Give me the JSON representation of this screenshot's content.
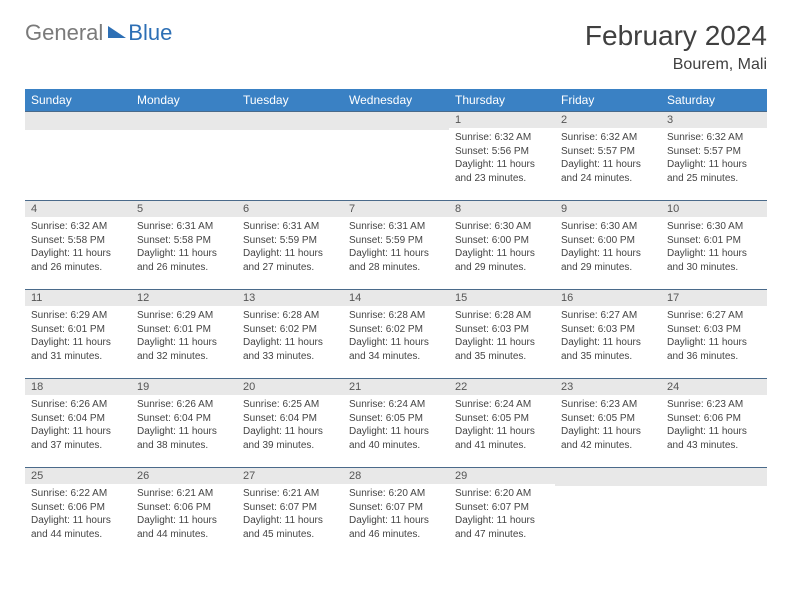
{
  "logo": {
    "general": "General",
    "blue": "Blue"
  },
  "title": "February 2024",
  "location": "Bourem, Mali",
  "weekdays": [
    "Sunday",
    "Monday",
    "Tuesday",
    "Wednesday",
    "Thursday",
    "Friday",
    "Saturday"
  ],
  "colors": {
    "header_bg": "#3a81c4",
    "header_text": "#ffffff",
    "daynum_bg": "#e8e8e8",
    "border": "#4a6a8a",
    "logo_gray": "#7a7a7a",
    "logo_blue": "#2d6fb5"
  },
  "weeks": [
    [
      {
        "num": "",
        "sunrise": "",
        "sunset": "",
        "daylight": ""
      },
      {
        "num": "",
        "sunrise": "",
        "sunset": "",
        "daylight": ""
      },
      {
        "num": "",
        "sunrise": "",
        "sunset": "",
        "daylight": ""
      },
      {
        "num": "",
        "sunrise": "",
        "sunset": "",
        "daylight": ""
      },
      {
        "num": "1",
        "sunrise": "Sunrise: 6:32 AM",
        "sunset": "Sunset: 5:56 PM",
        "daylight": "Daylight: 11 hours and 23 minutes."
      },
      {
        "num": "2",
        "sunrise": "Sunrise: 6:32 AM",
        "sunset": "Sunset: 5:57 PM",
        "daylight": "Daylight: 11 hours and 24 minutes."
      },
      {
        "num": "3",
        "sunrise": "Sunrise: 6:32 AM",
        "sunset": "Sunset: 5:57 PM",
        "daylight": "Daylight: 11 hours and 25 minutes."
      }
    ],
    [
      {
        "num": "4",
        "sunrise": "Sunrise: 6:32 AM",
        "sunset": "Sunset: 5:58 PM",
        "daylight": "Daylight: 11 hours and 26 minutes."
      },
      {
        "num": "5",
        "sunrise": "Sunrise: 6:31 AM",
        "sunset": "Sunset: 5:58 PM",
        "daylight": "Daylight: 11 hours and 26 minutes."
      },
      {
        "num": "6",
        "sunrise": "Sunrise: 6:31 AM",
        "sunset": "Sunset: 5:59 PM",
        "daylight": "Daylight: 11 hours and 27 minutes."
      },
      {
        "num": "7",
        "sunrise": "Sunrise: 6:31 AM",
        "sunset": "Sunset: 5:59 PM",
        "daylight": "Daylight: 11 hours and 28 minutes."
      },
      {
        "num": "8",
        "sunrise": "Sunrise: 6:30 AM",
        "sunset": "Sunset: 6:00 PM",
        "daylight": "Daylight: 11 hours and 29 minutes."
      },
      {
        "num": "9",
        "sunrise": "Sunrise: 6:30 AM",
        "sunset": "Sunset: 6:00 PM",
        "daylight": "Daylight: 11 hours and 29 minutes."
      },
      {
        "num": "10",
        "sunrise": "Sunrise: 6:30 AM",
        "sunset": "Sunset: 6:01 PM",
        "daylight": "Daylight: 11 hours and 30 minutes."
      }
    ],
    [
      {
        "num": "11",
        "sunrise": "Sunrise: 6:29 AM",
        "sunset": "Sunset: 6:01 PM",
        "daylight": "Daylight: 11 hours and 31 minutes."
      },
      {
        "num": "12",
        "sunrise": "Sunrise: 6:29 AM",
        "sunset": "Sunset: 6:01 PM",
        "daylight": "Daylight: 11 hours and 32 minutes."
      },
      {
        "num": "13",
        "sunrise": "Sunrise: 6:28 AM",
        "sunset": "Sunset: 6:02 PM",
        "daylight": "Daylight: 11 hours and 33 minutes."
      },
      {
        "num": "14",
        "sunrise": "Sunrise: 6:28 AM",
        "sunset": "Sunset: 6:02 PM",
        "daylight": "Daylight: 11 hours and 34 minutes."
      },
      {
        "num": "15",
        "sunrise": "Sunrise: 6:28 AM",
        "sunset": "Sunset: 6:03 PM",
        "daylight": "Daylight: 11 hours and 35 minutes."
      },
      {
        "num": "16",
        "sunrise": "Sunrise: 6:27 AM",
        "sunset": "Sunset: 6:03 PM",
        "daylight": "Daylight: 11 hours and 35 minutes."
      },
      {
        "num": "17",
        "sunrise": "Sunrise: 6:27 AM",
        "sunset": "Sunset: 6:03 PM",
        "daylight": "Daylight: 11 hours and 36 minutes."
      }
    ],
    [
      {
        "num": "18",
        "sunrise": "Sunrise: 6:26 AM",
        "sunset": "Sunset: 6:04 PM",
        "daylight": "Daylight: 11 hours and 37 minutes."
      },
      {
        "num": "19",
        "sunrise": "Sunrise: 6:26 AM",
        "sunset": "Sunset: 6:04 PM",
        "daylight": "Daylight: 11 hours and 38 minutes."
      },
      {
        "num": "20",
        "sunrise": "Sunrise: 6:25 AM",
        "sunset": "Sunset: 6:04 PM",
        "daylight": "Daylight: 11 hours and 39 minutes."
      },
      {
        "num": "21",
        "sunrise": "Sunrise: 6:24 AM",
        "sunset": "Sunset: 6:05 PM",
        "daylight": "Daylight: 11 hours and 40 minutes."
      },
      {
        "num": "22",
        "sunrise": "Sunrise: 6:24 AM",
        "sunset": "Sunset: 6:05 PM",
        "daylight": "Daylight: 11 hours and 41 minutes."
      },
      {
        "num": "23",
        "sunrise": "Sunrise: 6:23 AM",
        "sunset": "Sunset: 6:05 PM",
        "daylight": "Daylight: 11 hours and 42 minutes."
      },
      {
        "num": "24",
        "sunrise": "Sunrise: 6:23 AM",
        "sunset": "Sunset: 6:06 PM",
        "daylight": "Daylight: 11 hours and 43 minutes."
      }
    ],
    [
      {
        "num": "25",
        "sunrise": "Sunrise: 6:22 AM",
        "sunset": "Sunset: 6:06 PM",
        "daylight": "Daylight: 11 hours and 44 minutes."
      },
      {
        "num": "26",
        "sunrise": "Sunrise: 6:21 AM",
        "sunset": "Sunset: 6:06 PM",
        "daylight": "Daylight: 11 hours and 44 minutes."
      },
      {
        "num": "27",
        "sunrise": "Sunrise: 6:21 AM",
        "sunset": "Sunset: 6:07 PM",
        "daylight": "Daylight: 11 hours and 45 minutes."
      },
      {
        "num": "28",
        "sunrise": "Sunrise: 6:20 AM",
        "sunset": "Sunset: 6:07 PM",
        "daylight": "Daylight: 11 hours and 46 minutes."
      },
      {
        "num": "29",
        "sunrise": "Sunrise: 6:20 AM",
        "sunset": "Sunset: 6:07 PM",
        "daylight": "Daylight: 11 hours and 47 minutes."
      },
      {
        "num": "",
        "sunrise": "",
        "sunset": "",
        "daylight": ""
      },
      {
        "num": "",
        "sunrise": "",
        "sunset": "",
        "daylight": ""
      }
    ]
  ]
}
